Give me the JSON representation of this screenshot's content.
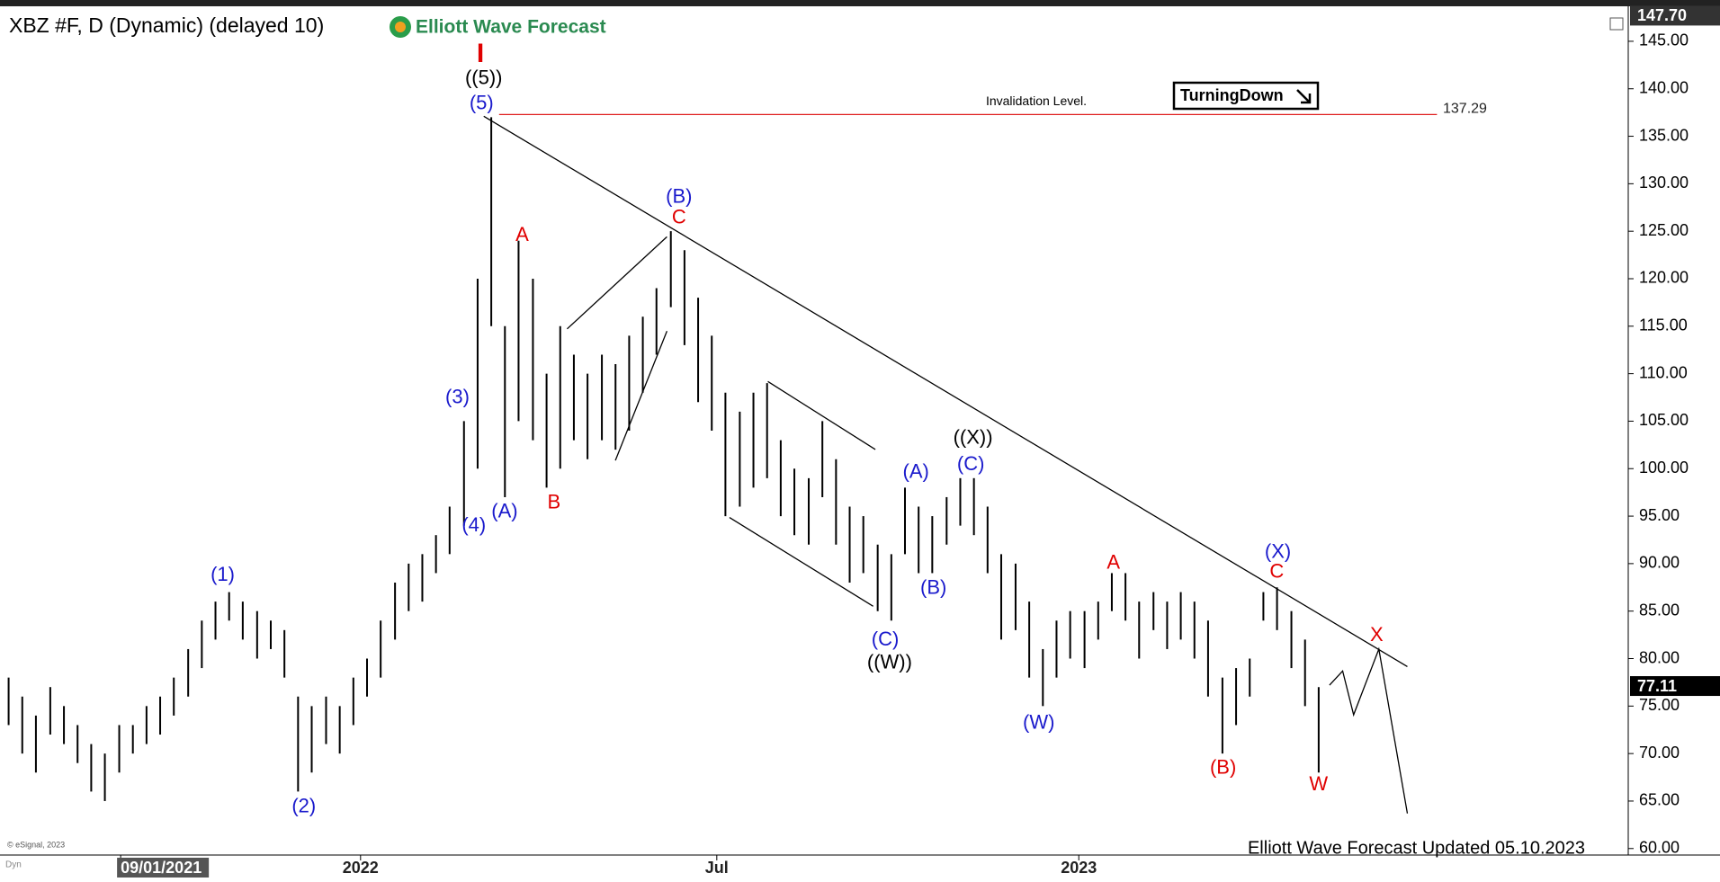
{
  "chart_data": {
    "type": "ohlc",
    "title": "XBZ #F, D (Dynamic) (delayed 10)",
    "brand": "Elliott Wave Forecast",
    "badge": "TurningDown",
    "copyright": "© eSignal, 2023",
    "mode": "Dyn",
    "footer": "Elliott Wave Forecast Updated 05.10.2023",
    "color": "#000000",
    "x": [
      2021.51,
      2021.529,
      2021.548,
      2021.568,
      2021.587,
      2021.606,
      2021.625,
      2021.644,
      2021.664,
      2021.683,
      2021.702,
      2021.721,
      2021.74,
      2021.76,
      2021.779,
      2021.798,
      2021.817,
      2021.836,
      2021.856,
      2021.875,
      2021.894,
      2021.913,
      2021.932,
      2021.952,
      2021.971,
      2021.99,
      2022.009,
      2022.028,
      2022.048,
      2022.067,
      2022.086,
      2022.105,
      2022.124,
      2022.144,
      2022.163,
      2022.182,
      2022.201,
      2022.22,
      2022.24,
      2022.259,
      2022.278,
      2022.297,
      2022.316,
      2022.336,
      2022.355,
      2022.374,
      2022.393,
      2022.412,
      2022.432,
      2022.451,
      2022.47,
      2022.489,
      2022.508,
      2022.528,
      2022.547,
      2022.566,
      2022.585,
      2022.604,
      2022.624,
      2022.643,
      2022.662,
      2022.681,
      2022.7,
      2022.72,
      2022.739,
      2022.758,
      2022.777,
      2022.796,
      2022.816,
      2022.835,
      2022.854,
      2022.873,
      2022.892,
      2022.912,
      2022.931,
      2022.95,
      2022.969,
      2022.988,
      2023.008,
      2023.027,
      2023.046,
      2023.065,
      2023.084,
      2023.104,
      2023.123,
      2023.142,
      2023.161,
      2023.18,
      2023.2,
      2023.219,
      2023.238,
      2023.257,
      2023.276,
      2023.296,
      2023.315,
      2023.334
    ],
    "high": [
      78,
      76,
      74,
      77,
      75,
      73,
      71,
      70,
      73,
      73,
      75,
      76,
      78,
      81,
      84,
      86,
      87,
      86,
      85,
      84,
      83,
      76,
      75,
      76,
      75,
      78,
      80,
      84,
      88,
      90,
      91,
      93,
      96,
      105,
      120,
      137,
      115,
      124,
      120,
      110,
      115,
      112,
      110,
      112,
      111,
      114,
      116,
      119,
      125,
      123,
      118,
      114,
      108,
      106,
      108,
      109,
      103,
      100,
      99,
      105,
      101,
      96,
      95,
      92,
      91,
      98,
      96,
      95,
      97,
      99,
      99,
      96,
      91,
      90,
      86,
      81,
      84,
      85,
      85,
      86,
      89,
      89,
      86,
      87,
      86,
      87,
      86,
      84,
      78,
      79,
      80,
      87,
      87.5,
      85,
      82,
      77
    ],
    "low": [
      73,
      70,
      68,
      72,
      71,
      69,
      66,
      65,
      68,
      70,
      71,
      72,
      74,
      76,
      79,
      82,
      84,
      82,
      80,
      81,
      78,
      66,
      68,
      71,
      70,
      73,
      76,
      78,
      82,
      85,
      86,
      89,
      91,
      94,
      100,
      115,
      97,
      105,
      103,
      98,
      100,
      103,
      101,
      103,
      102,
      104,
      108,
      112,
      117,
      113,
      107,
      104,
      95,
      96,
      98,
      99,
      95,
      93,
      92,
      97,
      92,
      88,
      89,
      85,
      84,
      91,
      89,
      89,
      92,
      94,
      93,
      89,
      82,
      83,
      78,
      75,
      78,
      80,
      79,
      82,
      85,
      84,
      80,
      83,
      81,
      82,
      80,
      76,
      70,
      73,
      76,
      84,
      83,
      79,
      75,
      68
    ],
    "xlim": [
      2021.498,
      2023.765
    ],
    "ylim": [
      59.6,
      148.4
    ],
    "xticks": [
      {
        "value": 2021.666,
        "label": "09/01/2021"
      },
      2022,
      {
        "value": 2022.496,
        "label": "Jul"
      },
      2023
    ],
    "yticks": [
      {
        "value": 60,
        "label": "60.00"
      },
      {
        "value": 65,
        "label": "65.00"
      },
      {
        "value": 70,
        "label": "70.00"
      },
      {
        "value": 75,
        "label": "75.00"
      },
      {
        "value": 80,
        "label": "80.00"
      },
      {
        "value": 85,
        "label": "85.00"
      },
      {
        "value": 90,
        "label": "90.00"
      },
      {
        "value": 95,
        "label": "95.00"
      },
      {
        "value": 100,
        "label": "100.00"
      },
      {
        "value": 105,
        "label": "105.00"
      },
      {
        "value": 110,
        "label": "110.00"
      },
      {
        "value": 115,
        "label": "115.00"
      },
      {
        "value": 120,
        "label": "120.00"
      },
      {
        "value": 125,
        "label": "125.00"
      },
      {
        "value": 130,
        "label": "130.00"
      },
      {
        "value": 135,
        "label": "135.00"
      },
      {
        "value": 140,
        "label": "140.00"
      },
      {
        "value": 145,
        "label": "145.00"
      }
    ],
    "price_markers": [
      {
        "value": 147.7,
        "label": "147.70"
      },
      77.11
    ],
    "invalidation": {
      "label": "Invalidation Level.",
      "value": 137.29,
      "color": "#e02020"
    },
    "annotations": [
      {
        "text": "I",
        "color": "#e00000"
      },
      {
        "text": "((5))",
        "color": "#000000"
      },
      {
        "text": "(5)",
        "color": "#1a1acc"
      },
      {
        "text": "(B)",
        "color": "#1a1acc"
      },
      {
        "text": "C",
        "color": "#e00000"
      },
      {
        "text": "A",
        "color": "#e00000"
      },
      {
        "text": "(3)",
        "color": "#1a1acc"
      },
      {
        "text": "(4)",
        "color": "#1a1acc"
      },
      {
        "text": "(A)",
        "color": "#1a1acc"
      },
      {
        "text": "B",
        "color": "#e00000"
      },
      {
        "text": "(1)",
        "color": "#1a1acc"
      },
      {
        "text": "(2)",
        "color": "#1a1acc"
      },
      {
        "text": "((X))",
        "color": "#000000"
      },
      {
        "text": "(C)",
        "color": "#1a1acc"
      },
      {
        "text": "(A)",
        "color": "#1a1acc"
      },
      {
        "text": "(B)",
        "color": "#1a1acc"
      },
      {
        "text": "(C)",
        "color": "#1a1acc"
      },
      {
        "text": "((W))",
        "color": "#000000"
      },
      {
        "text": "(W)",
        "color": "#1a1acc"
      },
      {
        "text": "A",
        "color": "#e00000"
      },
      {
        "text": "(X)",
        "color": "#1a1acc"
      },
      {
        "text": "C",
        "color": "#e00000"
      },
      {
        "text": "X",
        "color": "#e00000"
      },
      {
        "text": "(B)",
        "color": "#e00000"
      },
      {
        "text": "W",
        "color": "#e00000"
      }
    ]
  }
}
